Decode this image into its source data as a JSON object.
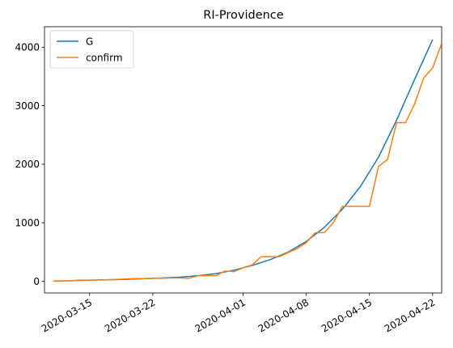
{
  "chart_data": {
    "type": "line",
    "title": "RI-Providence",
    "xlabel": "",
    "ylabel": "",
    "x_axis_type": "date",
    "xlim": [
      "2020-03-10",
      "2020-04-23"
    ],
    "ylim": [
      -200,
      4350
    ],
    "x_ticks": [
      "2020-03-15",
      "2020-03-22",
      "2020-04-01",
      "2020-04-08",
      "2020-04-15",
      "2020-04-22"
    ],
    "y_ticks": [
      0,
      1000,
      2000,
      3000,
      4000
    ],
    "x_tick_rotation_deg": 30,
    "grid": false,
    "legend": {
      "position": "top-left"
    },
    "series": [
      {
        "name": "G",
        "color": "#1f77b4",
        "points": [
          [
            "2020-03-11",
            3
          ],
          [
            "2020-03-13",
            10
          ],
          [
            "2020-03-15",
            18
          ],
          [
            "2020-03-17",
            26
          ],
          [
            "2020-03-19",
            34
          ],
          [
            "2020-03-21",
            43
          ],
          [
            "2020-03-23",
            55
          ],
          [
            "2020-03-25",
            70
          ],
          [
            "2020-03-27",
            95
          ],
          [
            "2020-03-29",
            130
          ],
          [
            "2020-03-31",
            190
          ],
          [
            "2020-04-02",
            270
          ],
          [
            "2020-04-04",
            370
          ],
          [
            "2020-04-06",
            500
          ],
          [
            "2020-04-08",
            680
          ],
          [
            "2020-04-10",
            920
          ],
          [
            "2020-04-12",
            1230
          ],
          [
            "2020-04-14",
            1620
          ],
          [
            "2020-04-16",
            2120
          ],
          [
            "2020-04-18",
            2750
          ],
          [
            "2020-04-20",
            3450
          ],
          [
            "2020-04-22",
            4130
          ]
        ]
      },
      {
        "name": "confirm",
        "color": "#ff7f0e",
        "points": [
          [
            "2020-03-11",
            5
          ],
          [
            "2020-03-12",
            5
          ],
          [
            "2020-03-13",
            10
          ],
          [
            "2020-03-14",
            20
          ],
          [
            "2020-03-15",
            20
          ],
          [
            "2020-03-16",
            22
          ],
          [
            "2020-03-17",
            25
          ],
          [
            "2020-03-18",
            30
          ],
          [
            "2020-03-19",
            40
          ],
          [
            "2020-03-20",
            45
          ],
          [
            "2020-03-21",
            45
          ],
          [
            "2020-03-22",
            50
          ],
          [
            "2020-03-23",
            50
          ],
          [
            "2020-03-24",
            55
          ],
          [
            "2020-03-25",
            55
          ],
          [
            "2020-03-26",
            50
          ],
          [
            "2020-03-27",
            95
          ],
          [
            "2020-03-28",
            95
          ],
          [
            "2020-03-29",
            95
          ],
          [
            "2020-03-30",
            175
          ],
          [
            "2020-03-31",
            165
          ],
          [
            "2020-04-01",
            230
          ],
          [
            "2020-04-02",
            280
          ],
          [
            "2020-04-03",
            420
          ],
          [
            "2020-04-04",
            420
          ],
          [
            "2020-04-05",
            420
          ],
          [
            "2020-04-06",
            490
          ],
          [
            "2020-04-07",
            560
          ],
          [
            "2020-04-08",
            660
          ],
          [
            "2020-04-09",
            830
          ],
          [
            "2020-04-10",
            830
          ],
          [
            "2020-04-11",
            1000
          ],
          [
            "2020-04-12",
            1280
          ],
          [
            "2020-04-13",
            1280
          ],
          [
            "2020-04-14",
            1280
          ],
          [
            "2020-04-15",
            1280
          ],
          [
            "2020-04-16",
            1960
          ],
          [
            "2020-04-17",
            2080
          ],
          [
            "2020-04-18",
            2710
          ],
          [
            "2020-04-19",
            2710
          ],
          [
            "2020-04-20",
            3030
          ],
          [
            "2020-04-21",
            3470
          ],
          [
            "2020-04-22",
            3650
          ],
          [
            "2020-04-23",
            4060
          ]
        ]
      }
    ]
  }
}
